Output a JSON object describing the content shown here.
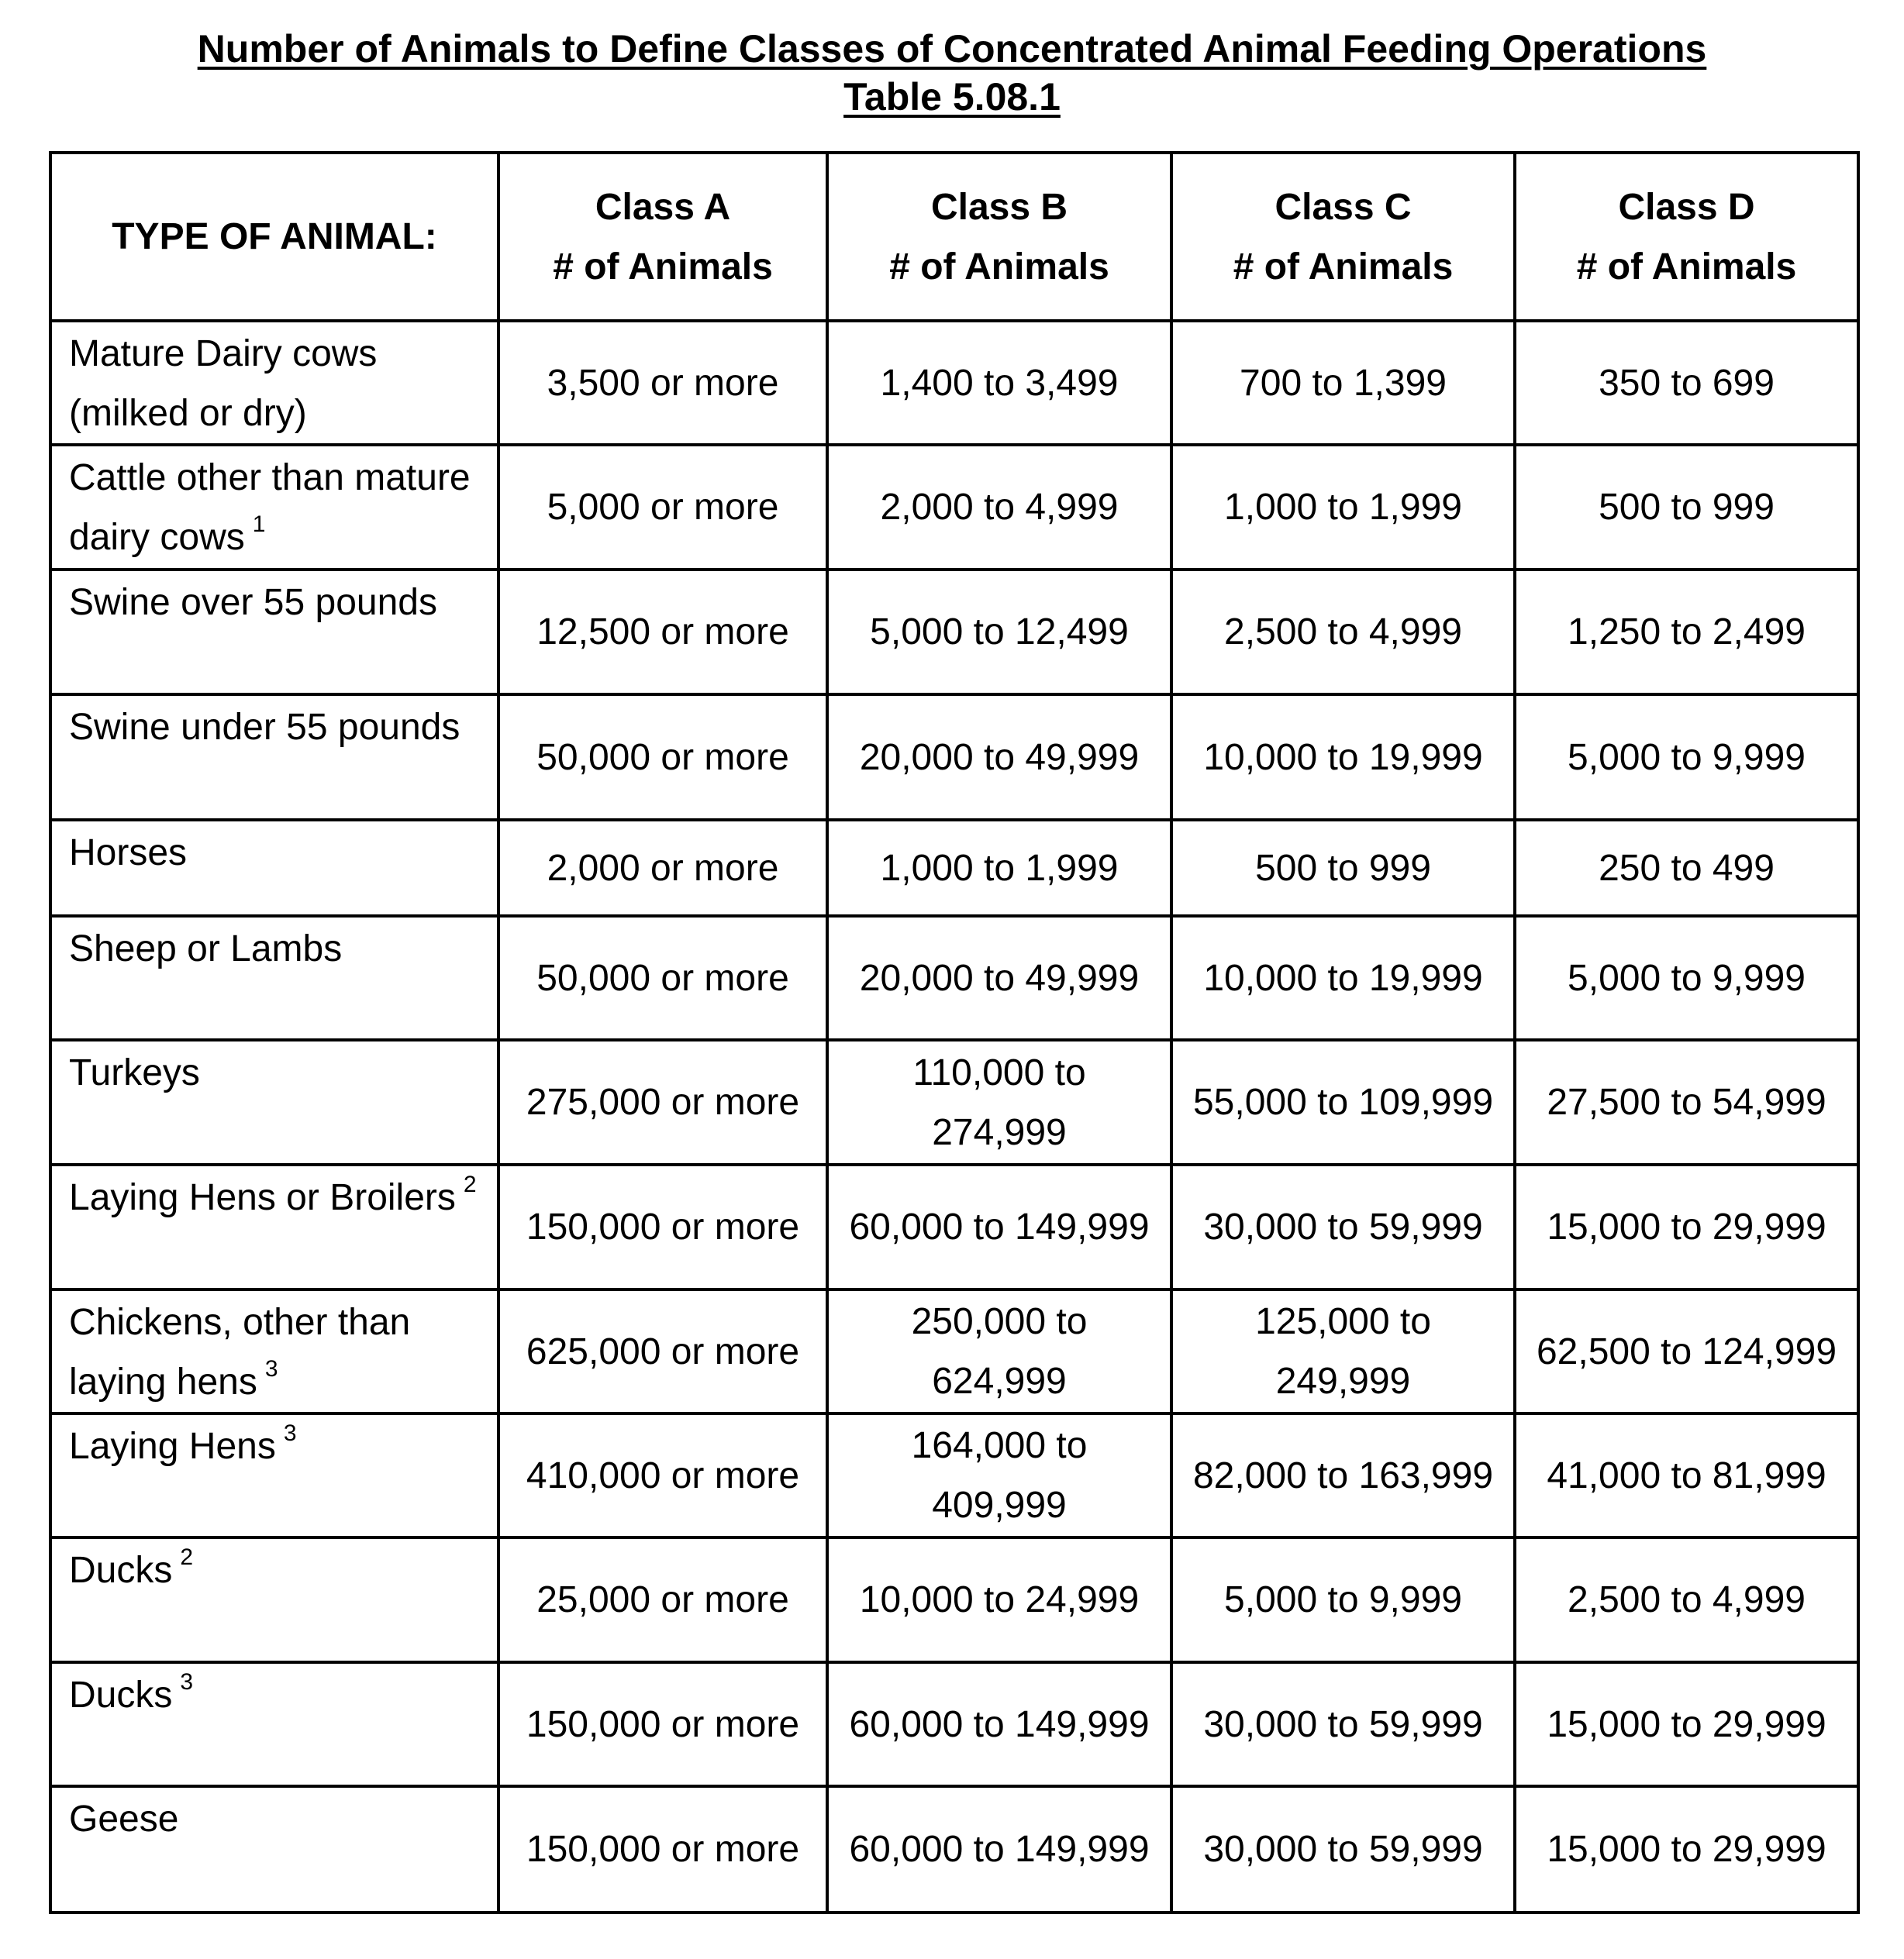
{
  "title": "Number of Animals to Define Classes of Concentrated Animal Feeding Operations",
  "subtitle": "Table 5.08.1",
  "header": {
    "type_label": "TYPE OF ANIMAL:",
    "classes": [
      {
        "name": "Class A",
        "unit": "# of Animals"
      },
      {
        "name": "Class B",
        "unit": "# of Animals"
      },
      {
        "name": "Class C",
        "unit": "# of Animals"
      },
      {
        "name": "Class D",
        "unit": "# of Animals"
      }
    ]
  },
  "rows": [
    {
      "animal": "Mature Dairy cows (milked or dry)",
      "note": "",
      "values": [
        "3,500 or more",
        "1,400 to 3,499",
        "700 to 1,399",
        "350 to 699"
      ]
    },
    {
      "animal": "Cattle other than mature dairy cows",
      "note": "1",
      "values": [
        "5,000 or more",
        "2,000 to 4,999",
        "1,000 to 1,999",
        "500 to 999"
      ]
    },
    {
      "animal": "Swine over 55 pounds",
      "note": "",
      "values": [
        "12,500 or more",
        "5,000 to 12,499",
        "2,500 to 4,999",
        "1,250 to 2,499"
      ]
    },
    {
      "animal": "Swine under 55 pounds",
      "note": "",
      "values": [
        "50,000 or more",
        "20,000 to 49,999",
        "10,000 to 19,999",
        "5,000 to 9,999"
      ]
    },
    {
      "animal": "Horses",
      "note": "",
      "values": [
        "2,000 or more",
        "1,000 to 1,999",
        "500 to 999",
        "250 to 499"
      ]
    },
    {
      "animal": "Sheep or Lambs",
      "note": "",
      "values": [
        "50,000 or more",
        "20,000 to 49,999",
        "10,000 to 19,999",
        "5,000 to 9,999"
      ]
    },
    {
      "animal": "Turkeys",
      "note": "",
      "values": [
        "275,000 or more",
        "110,000 to 274,999",
        "55,000 to 109,999",
        "27,500 to 54,999"
      ]
    },
    {
      "animal": "Laying Hens or Broilers",
      "note": "2",
      "values": [
        "150,000 or more",
        "60,000 to 149,999",
        "30,000 to 59,999",
        "15,000 to 29,999"
      ]
    },
    {
      "animal": "Chickens, other than laying hens",
      "note": "3",
      "values": [
        "625,000 or more",
        "250,000 to 624,999",
        "125,000 to 249,999",
        "62,500 to 124,999"
      ]
    },
    {
      "animal": "Laying Hens",
      "note": "3",
      "values": [
        "410,000 or more",
        "164,000 to 409,999",
        "82,000 to 163,999",
        "41,000 to 81,999"
      ]
    },
    {
      "animal": "Ducks",
      "note": "2",
      "values": [
        "25,000 or more",
        "10,000 to 24,999",
        "5,000 to 9,999",
        "2,500 to 4,999"
      ]
    },
    {
      "animal": "Ducks",
      "note": "3",
      "values": [
        "150,000 or more",
        "60,000 to 149,999",
        "30,000 to 59,999",
        "15,000 to 29,999"
      ]
    },
    {
      "animal": "Geese",
      "note": "",
      "values": [
        "150,000 or more",
        "60,000 to 149,999",
        "30,000 to 59,999",
        "15,000 to 29,999"
      ]
    }
  ]
}
